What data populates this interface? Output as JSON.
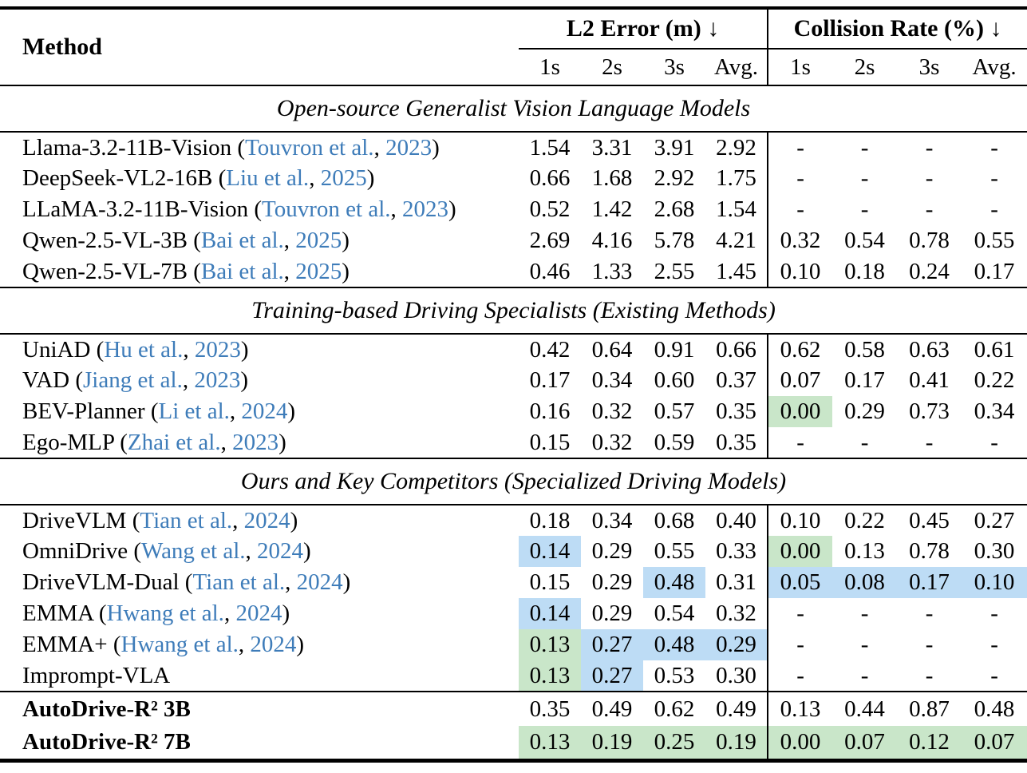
{
  "colors": {
    "best": "#c9e6c9",
    "second": "#bddcf5",
    "citation": "#3e7cb9"
  },
  "table": {
    "method_header": "Method",
    "groups": [
      {
        "label": "L2 Error (m)",
        "arrow": "↓"
      },
      {
        "label": "Collision Rate (%)",
        "arrow": "↓"
      }
    ],
    "subheaders": [
      "1s",
      "2s",
      "3s",
      "Avg."
    ],
    "sections": [
      {
        "title": "Open-source Generalist Vision Language Models",
        "rows": [
          {
            "method": "Llama-3.2-11B-Vision",
            "cite_authors": "Touvron et al.",
            "cite_year": "2023",
            "l2": [
              "1.54",
              "3.31",
              "3.91",
              "2.92"
            ],
            "cr": [
              "-",
              "-",
              "-",
              "-"
            ]
          },
          {
            "method": "DeepSeek-VL2-16B",
            "cite_authors": "Liu et al.",
            "cite_year": "2025",
            "l2": [
              "0.66",
              "1.68",
              "2.92",
              "1.75"
            ],
            "cr": [
              "-",
              "-",
              "-",
              "-"
            ]
          },
          {
            "method": "LLaMA-3.2-11B-Vision",
            "cite_authors": "Touvron et al.",
            "cite_year": "2023",
            "l2": [
              "0.52",
              "1.42",
              "2.68",
              "1.54"
            ],
            "cr": [
              "-",
              "-",
              "-",
              "-"
            ]
          },
          {
            "method": "Qwen-2.5-VL-3B",
            "cite_authors": "Bai et al.",
            "cite_year": "2025",
            "l2": [
              "2.69",
              "4.16",
              "5.78",
              "4.21"
            ],
            "cr": [
              "0.32",
              "0.54",
              "0.78",
              "0.55"
            ]
          },
          {
            "method": "Qwen-2.5-VL-7B",
            "cite_authors": "Bai et al.",
            "cite_year": "2025",
            "l2": [
              "0.46",
              "1.33",
              "2.55",
              "1.45"
            ],
            "cr": [
              "0.10",
              "0.18",
              "0.24",
              "0.17"
            ]
          }
        ]
      },
      {
        "title": "Training-based Driving Specialists (Existing Methods)",
        "rows": [
          {
            "method": "UniAD",
            "cite_authors": "Hu et al.",
            "cite_year": "2023",
            "l2": [
              "0.42",
              "0.64",
              "0.91",
              "0.66"
            ],
            "cr": [
              "0.62",
              "0.58",
              "0.63",
              "0.61"
            ]
          },
          {
            "method": "VAD",
            "cite_authors": "Jiang et al.",
            "cite_year": "2023",
            "l2": [
              "0.17",
              "0.34",
              "0.60",
              "0.37"
            ],
            "cr": [
              "0.07",
              "0.17",
              "0.41",
              "0.22"
            ]
          },
          {
            "method": "BEV-Planner",
            "cite_authors": "Li et al.",
            "cite_year": "2024",
            "l2": [
              "0.16",
              "0.32",
              "0.57",
              "0.35"
            ],
            "cr": [
              "0.00",
              "0.29",
              "0.73",
              "0.34"
            ],
            "cr_hl": [
              "best",
              "",
              "",
              ""
            ]
          },
          {
            "method": "Ego-MLP",
            "cite_authors": "Zhai et al.",
            "cite_year": "2023",
            "l2": [
              "0.15",
              "0.32",
              "0.59",
              "0.35"
            ],
            "cr": [
              "-",
              "-",
              "-",
              "-"
            ]
          }
        ]
      },
      {
        "title": "Ours and Key Competitors (Specialized Driving Models)",
        "rows": [
          {
            "method": "DriveVLM",
            "cite_authors": "Tian et al.",
            "cite_year": "2024",
            "l2": [
              "0.18",
              "0.34",
              "0.68",
              "0.40"
            ],
            "cr": [
              "0.10",
              "0.22",
              "0.45",
              "0.27"
            ]
          },
          {
            "method": "OmniDrive",
            "cite_authors": "Wang et al.",
            "cite_year": "2024",
            "l2": [
              "0.14",
              "0.29",
              "0.55",
              "0.33"
            ],
            "l2_hl": [
              "second",
              "",
              "",
              ""
            ],
            "cr": [
              "0.00",
              "0.13",
              "0.78",
              "0.30"
            ],
            "cr_hl": [
              "best",
              "",
              "",
              ""
            ]
          },
          {
            "method": "DriveVLM-Dual",
            "cite_authors": "Tian et al.",
            "cite_year": "2024",
            "l2": [
              "0.15",
              "0.29",
              "0.48",
              "0.31"
            ],
            "l2_hl": [
              "",
              "",
              "second",
              ""
            ],
            "cr": [
              "0.05",
              "0.08",
              "0.17",
              "0.10"
            ],
            "cr_hl": [
              "second",
              "second",
              "second",
              "second"
            ]
          },
          {
            "method": "EMMA",
            "cite_authors": "Hwang et al.",
            "cite_year": "2024",
            "l2": [
              "0.14",
              "0.29",
              "0.54",
              "0.32"
            ],
            "l2_hl": [
              "second",
              "",
              "",
              ""
            ],
            "cr": [
              "-",
              "-",
              "-",
              "-"
            ]
          },
          {
            "method": "EMMA+",
            "cite_authors": "Hwang et al.",
            "cite_year": "2024",
            "l2": [
              "0.13",
              "0.27",
              "0.48",
              "0.29"
            ],
            "l2_hl": [
              "best",
              "second",
              "second",
              "second"
            ],
            "cr": [
              "-",
              "-",
              "-",
              "-"
            ]
          },
          {
            "method": "Imprompt-VLA",
            "l2": [
              "0.13",
              "0.27",
              "0.53",
              "0.30"
            ],
            "l2_hl": [
              "best",
              "second",
              "",
              ""
            ],
            "cr": [
              "-",
              "-",
              "-",
              "-"
            ]
          }
        ]
      }
    ],
    "final_rows": [
      {
        "method": "AutoDrive-R² 3B",
        "bold": true,
        "l2": [
          "0.35",
          "0.49",
          "0.62",
          "0.49"
        ],
        "cr": [
          "0.13",
          "0.44",
          "0.87",
          "0.48"
        ]
      },
      {
        "method": "AutoDrive-R² 7B",
        "bold": true,
        "l2": [
          "0.13",
          "0.19",
          "0.25",
          "0.19"
        ],
        "l2_hl": [
          "best",
          "best",
          "best",
          "best"
        ],
        "cr": [
          "0.00",
          "0.07",
          "0.12",
          "0.07"
        ],
        "cr_hl": [
          "best",
          "best",
          "best",
          "best"
        ]
      }
    ]
  }
}
